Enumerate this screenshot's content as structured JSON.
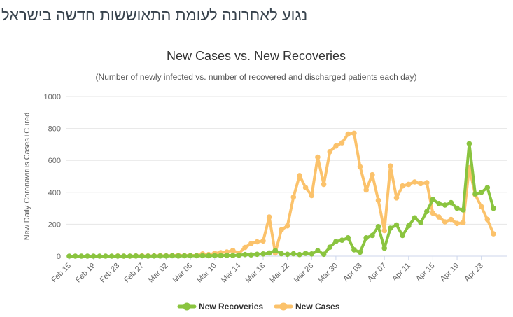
{
  "header": {
    "title_he": "נגוע לאחרונה לעומת התאוששות חדשה בישראל"
  },
  "chart_data": {
    "type": "line",
    "title": "New Cases vs. New Recoveries",
    "subtitle": "(Number of newly infected vs. number of recovered and discharged patients each day)",
    "xlabel": "",
    "ylabel": "New Daily Coronavirus Cases+Cured",
    "ylim": [
      0,
      1000
    ],
    "y_ticks": [
      0,
      200,
      400,
      600,
      800,
      1000
    ],
    "grid": "horizontal",
    "legend_position": "bottom",
    "x_tick_every": 4,
    "x_tick_labels": [
      "Feb 15",
      "Feb 19",
      "Feb 23",
      "Feb 27",
      "Mar 02",
      "Mar 06",
      "Mar 10",
      "Mar 14",
      "Mar 18",
      "Mar 22",
      "Mar 26",
      "Mar 30",
      "Apr 03",
      "Apr 07",
      "Apr 11",
      "Apr 15",
      "Apr 19",
      "Apr 23"
    ],
    "categories": [
      "Feb 15",
      "Feb 16",
      "Feb 17",
      "Feb 18",
      "Feb 19",
      "Feb 20",
      "Feb 21",
      "Feb 22",
      "Feb 23",
      "Feb 24",
      "Feb 25",
      "Feb 26",
      "Feb 27",
      "Feb 28",
      "Feb 29",
      "Mar 01",
      "Mar 02",
      "Mar 03",
      "Mar 04",
      "Mar 05",
      "Mar 06",
      "Mar 07",
      "Mar 08",
      "Mar 09",
      "Mar 10",
      "Mar 11",
      "Mar 12",
      "Mar 13",
      "Mar 14",
      "Mar 15",
      "Mar 16",
      "Mar 17",
      "Mar 18",
      "Mar 19",
      "Mar 20",
      "Mar 21",
      "Mar 22",
      "Mar 23",
      "Mar 24",
      "Mar 25",
      "Mar 26",
      "Mar 27",
      "Mar 28",
      "Mar 29",
      "Mar 30",
      "Mar 31",
      "Apr 01",
      "Apr 02",
      "Apr 03",
      "Apr 04",
      "Apr 05",
      "Apr 06",
      "Apr 07",
      "Apr 08",
      "Apr 09",
      "Apr 10",
      "Apr 11",
      "Apr 12",
      "Apr 13",
      "Apr 14",
      "Apr 15",
      "Apr 16",
      "Apr 17",
      "Apr 18",
      "Apr 19",
      "Apr 20",
      "Apr 21",
      "Apr 22",
      "Apr 23",
      "Apr 24",
      "Apr 25"
    ],
    "series": [
      {
        "name": "New Cases",
        "color": "#FBC26B",
        "values": [
          null,
          null,
          null,
          null,
          null,
          null,
          null,
          null,
          1,
          0,
          0,
          1,
          2,
          1,
          2,
          3,
          2,
          4,
          5,
          3,
          5,
          4,
          14,
          10,
          18,
          22,
          26,
          36,
          18,
          55,
          78,
          90,
          95,
          245,
          20,
          165,
          190,
          370,
          505,
          430,
          380,
          620,
          450,
          655,
          690,
          710,
          765,
          770,
          560,
          415,
          510,
          350,
          160,
          565,
          365,
          440,
          450,
          465,
          455,
          460,
          270,
          245,
          215,
          230,
          205,
          210,
          555,
          385,
          310,
          230,
          140
        ]
      },
      {
        "name": "New Recoveries",
        "color": "#8AC43F",
        "values": [
          0,
          0,
          0,
          0,
          0,
          0,
          0,
          0,
          0,
          0,
          0,
          1,
          0,
          0,
          1,
          1,
          1,
          2,
          1,
          2,
          2,
          2,
          3,
          2,
          4,
          3,
          5,
          4,
          6,
          10,
          8,
          12,
          14,
          20,
          35,
          15,
          12,
          15,
          10,
          18,
          14,
          34,
          12,
          56,
          92,
          100,
          115,
          40,
          25,
          115,
          130,
          185,
          50,
          175,
          195,
          130,
          190,
          240,
          210,
          280,
          355,
          330,
          320,
          335,
          300,
          290,
          705,
          390,
          400,
          430,
          300
        ]
      }
    ],
    "colors": {
      "grid_line": "#E6E6E6",
      "axis_line": "#CCD6EB",
      "tick_text": "#666666",
      "title_text": "#333333",
      "subtitle_text": "#555555",
      "legend_text": "#333333",
      "hebrew_title_text": "#37424c"
    }
  }
}
